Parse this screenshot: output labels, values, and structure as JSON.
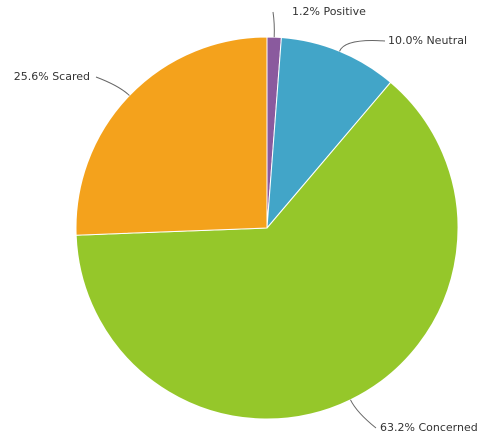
{
  "chart_data": {
    "type": "pie",
    "categories": [
      "Positive",
      "Neutral",
      "Concerned",
      "Scared"
    ],
    "values": [
      1.2,
      10.0,
      63.2,
      25.6
    ],
    "value_labels": [
      "1.2%",
      "10.0%",
      "63.2%",
      "25.6%"
    ],
    "colors": [
      "#8a5a9e",
      "#42a5c8",
      "#95c72a",
      "#f4a21c"
    ]
  }
}
